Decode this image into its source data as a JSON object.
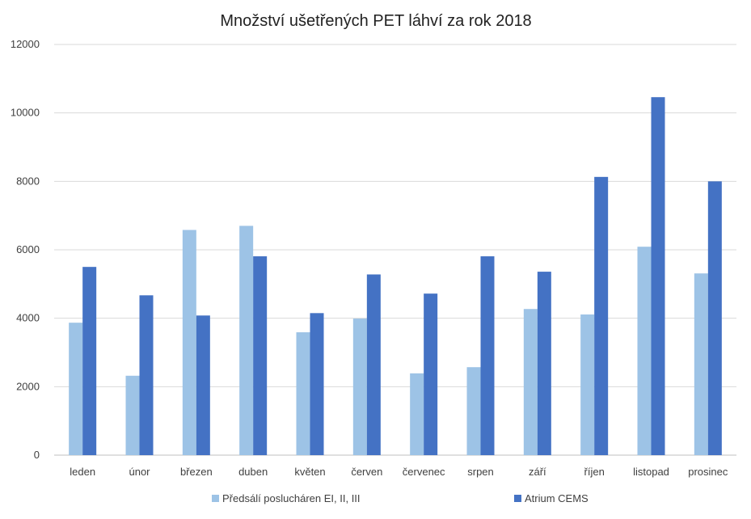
{
  "chart_data": {
    "type": "bar",
    "title": "Množství ušetřených PET láhví za rok 2018",
    "xlabel": "",
    "ylabel": "",
    "ylim": [
      0,
      12000
    ],
    "yticks": [
      0,
      2000,
      4000,
      6000,
      8000,
      10000,
      12000
    ],
    "grid": true,
    "legend_position": "bottom",
    "categories": [
      "leden",
      "únor",
      "březen",
      "duben",
      "květen",
      "červen",
      "červenec",
      "srpen",
      "září",
      "říjen",
      "listopad",
      "prosinec"
    ],
    "series": [
      {
        "name": "Předsálí poslucháren EI, II, III",
        "color": "#9dc3e6",
        "values": [
          3870,
          2320,
          6580,
          6700,
          3590,
          3990,
          2390,
          2570,
          4270,
          4110,
          6090,
          5310
        ]
      },
      {
        "name": "Atrium CEMS",
        "color": "#4472c4",
        "values": [
          5500,
          4670,
          4080,
          5810,
          4150,
          5280,
          4720,
          5810,
          5360,
          8130,
          10460,
          8000
        ]
      }
    ]
  }
}
